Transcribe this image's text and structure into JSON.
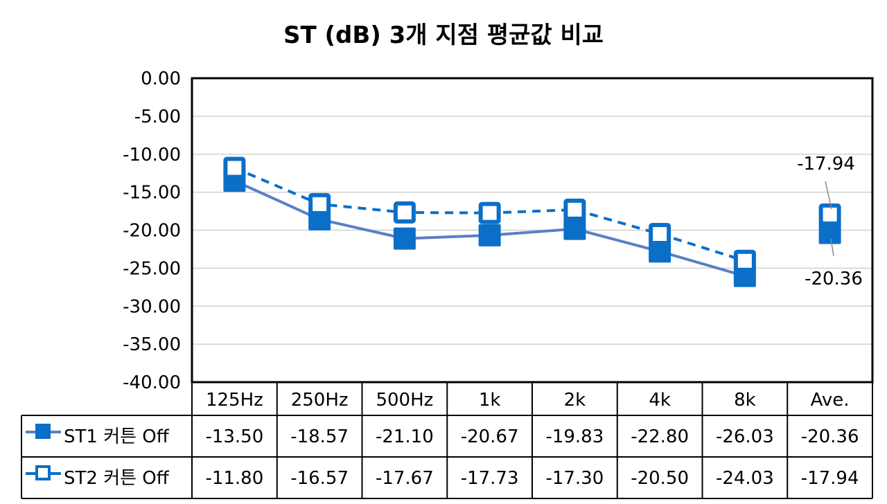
{
  "chart_data": {
    "type": "line",
    "title": "ST (dB) 3개 지점 평균값 비교",
    "categories": [
      "125Hz",
      "250Hz",
      "500Hz",
      "1k",
      "2k",
      "4k",
      "8k",
      "Ave."
    ],
    "ylim": [
      -40,
      0
    ],
    "yticks": [
      "0.00",
      "-5.00",
      "-10.00",
      "-15.00",
      "-20.00",
      "-25.00",
      "-30.00",
      "-35.00",
      "-40.00"
    ],
    "grid": true,
    "legend": "data table",
    "series": [
      {
        "name": "ST1 커튼 Off",
        "values": [
          -13.5,
          -18.57,
          -21.1,
          -20.67,
          -19.83,
          -22.8,
          -26.03,
          -20.36
        ],
        "display": [
          "-13.50",
          "-18.57",
          "-21.10",
          "-20.67",
          "-19.83",
          "-22.80",
          "-26.03",
          "-20.36"
        ],
        "marker": "square-filled",
        "line": "solid"
      },
      {
        "name": "ST2 커튼 Off",
        "values": [
          -11.8,
          -16.57,
          -17.67,
          -17.73,
          -17.3,
          -20.5,
          -24.03,
          -17.94
        ],
        "display": [
          "-11.80",
          "-16.57",
          "-17.67",
          "-17.73",
          "-17.30",
          "-20.50",
          "-24.03",
          "-17.94"
        ],
        "marker": "square-hollow",
        "line": "dashed"
      }
    ],
    "data_labels": [
      "-17.94",
      "-20.36"
    ]
  },
  "colors": {
    "st1_line": "#5B7FC7",
    "marker": "#0B6FC8",
    "st2_line": "#0B6FC8",
    "grid": "#D0D0D0",
    "axis": "#000000"
  }
}
